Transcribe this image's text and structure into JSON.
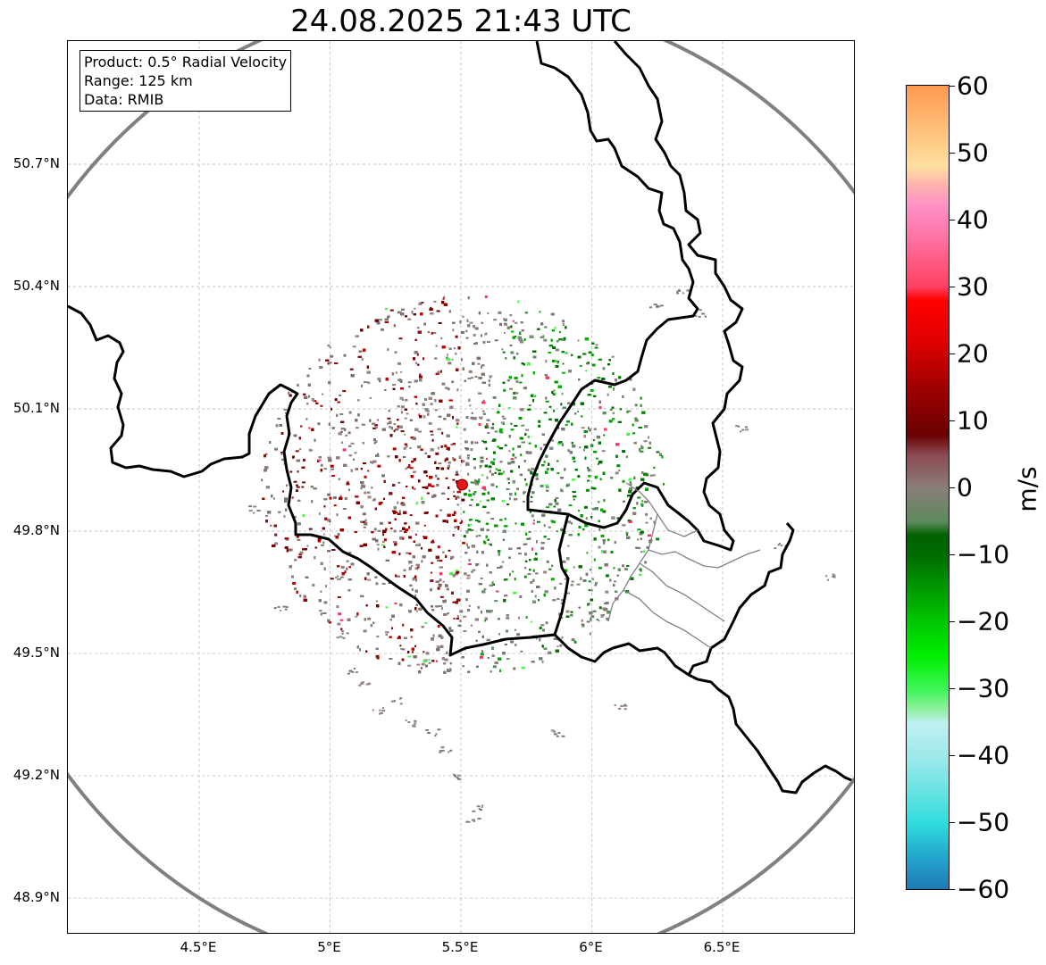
{
  "title": "24.08.2025 21:43 UTC",
  "info_box": {
    "product": "Product: 0.5° Radial Velocity",
    "range": "Range: 125 km",
    "data_source": "Data: RMIB"
  },
  "map": {
    "lat_ticks": [
      {
        "value": 50.7,
        "label": "50.7°N"
      },
      {
        "value": 50.4,
        "label": "50.4°N"
      },
      {
        "value": 50.1,
        "label": "50.1°N"
      },
      {
        "value": 49.8,
        "label": "49.8°N"
      },
      {
        "value": 49.5,
        "label": "49.5°N"
      },
      {
        "value": 49.2,
        "label": "49.2°N"
      },
      {
        "value": 48.9,
        "label": "48.9°N"
      }
    ],
    "lon_ticks": [
      {
        "value": 4.5,
        "label": "4.5°E"
      },
      {
        "value": 5.0,
        "label": "5°E"
      },
      {
        "value": 5.5,
        "label": "5.5°E"
      },
      {
        "value": 6.0,
        "label": "6°E"
      },
      {
        "value": 6.5,
        "label": "6.5°E"
      }
    ],
    "extent": {
      "lon_min": 4.0,
      "lon_max": 7.0,
      "lat_min": 48.8,
      "lat_max": 51.0
    },
    "radar_site": {
      "lon": 5.505,
      "lat": 49.914
    },
    "range_ring_color": "#808080",
    "radar_site_color": "#e8141a"
  },
  "colorbar": {
    "unit": "m/s",
    "vmin": -60,
    "vmax": 60,
    "ticks": [
      {
        "value": 60,
        "label": "60"
      },
      {
        "value": 50,
        "label": "50"
      },
      {
        "value": 40,
        "label": "40"
      },
      {
        "value": 30,
        "label": "30"
      },
      {
        "value": 20,
        "label": "20"
      },
      {
        "value": 10,
        "label": "10"
      },
      {
        "value": 0,
        "label": "0"
      },
      {
        "value": -10,
        "label": "−10"
      },
      {
        "value": -20,
        "label": "−20"
      },
      {
        "value": -30,
        "label": "−30"
      },
      {
        "value": -40,
        "label": "−40"
      },
      {
        "value": -50,
        "label": "−50"
      },
      {
        "value": -60,
        "label": "−60"
      }
    ],
    "color_stops": [
      {
        "value": -60,
        "color": "#1f77b4"
      },
      {
        "value": -55,
        "color": "#22a5cc"
      },
      {
        "value": -50,
        "color": "#2fdcdc"
      },
      {
        "value": -45,
        "color": "#6ae3e3"
      },
      {
        "value": -40,
        "color": "#9ee9ea"
      },
      {
        "value": -35,
        "color": "#bff0f2"
      },
      {
        "value": -33,
        "color": "#90f0a0"
      },
      {
        "value": -30,
        "color": "#3ff55a"
      },
      {
        "value": -25,
        "color": "#00ee00"
      },
      {
        "value": -20,
        "color": "#00c800"
      },
      {
        "value": -15,
        "color": "#009a00"
      },
      {
        "value": -10,
        "color": "#006c00"
      },
      {
        "value": -7,
        "color": "#006000"
      },
      {
        "value": -5,
        "color": "#5c8a5c"
      },
      {
        "value": 0,
        "color": "#8a7e78"
      },
      {
        "value": 5,
        "color": "#8c4a52"
      },
      {
        "value": 8,
        "color": "#6a0000"
      },
      {
        "value": 15,
        "color": "#a00000"
      },
      {
        "value": 22,
        "color": "#e00000"
      },
      {
        "value": 28,
        "color": "#ff0000"
      },
      {
        "value": 30,
        "color": "#ff4060"
      },
      {
        "value": 37,
        "color": "#ff70a0"
      },
      {
        "value": 42,
        "color": "#ff90c8"
      },
      {
        "value": 45,
        "color": "#ffb0b0"
      },
      {
        "value": 48,
        "color": "#ffe0a0"
      },
      {
        "value": 55,
        "color": "#ffb870"
      },
      {
        "value": 60,
        "color": "#ff9850"
      }
    ]
  }
}
